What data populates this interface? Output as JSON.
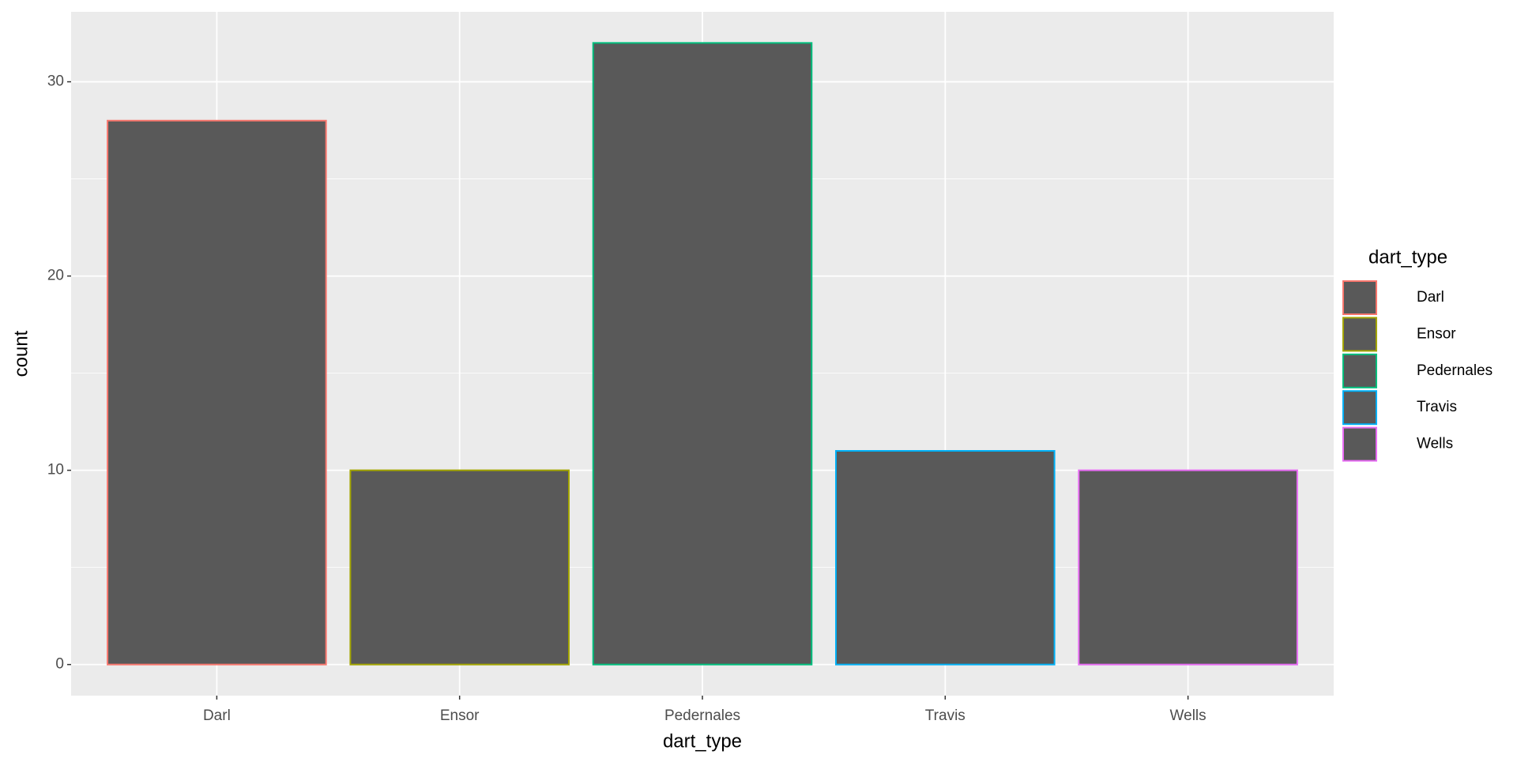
{
  "chart_data": {
    "type": "bar",
    "categories": [
      "Darl",
      "Ensor",
      "Pedernales",
      "Travis",
      "Wells"
    ],
    "values": [
      28,
      10,
      32,
      11,
      10
    ],
    "fill": "#595959",
    "colors": [
      "#F8766D",
      "#A3A500",
      "#00BF7D",
      "#00B0F6",
      "#E76BF3"
    ],
    "x_label": "dart_type",
    "y_label": "count",
    "legend_title": "dart_type",
    "ylim": [
      -1.6,
      33.6
    ],
    "yticks": [
      0,
      10,
      20,
      30
    ],
    "minor_yticks": [
      5,
      15,
      25
    ],
    "grid": true,
    "legend_position": "right"
  }
}
